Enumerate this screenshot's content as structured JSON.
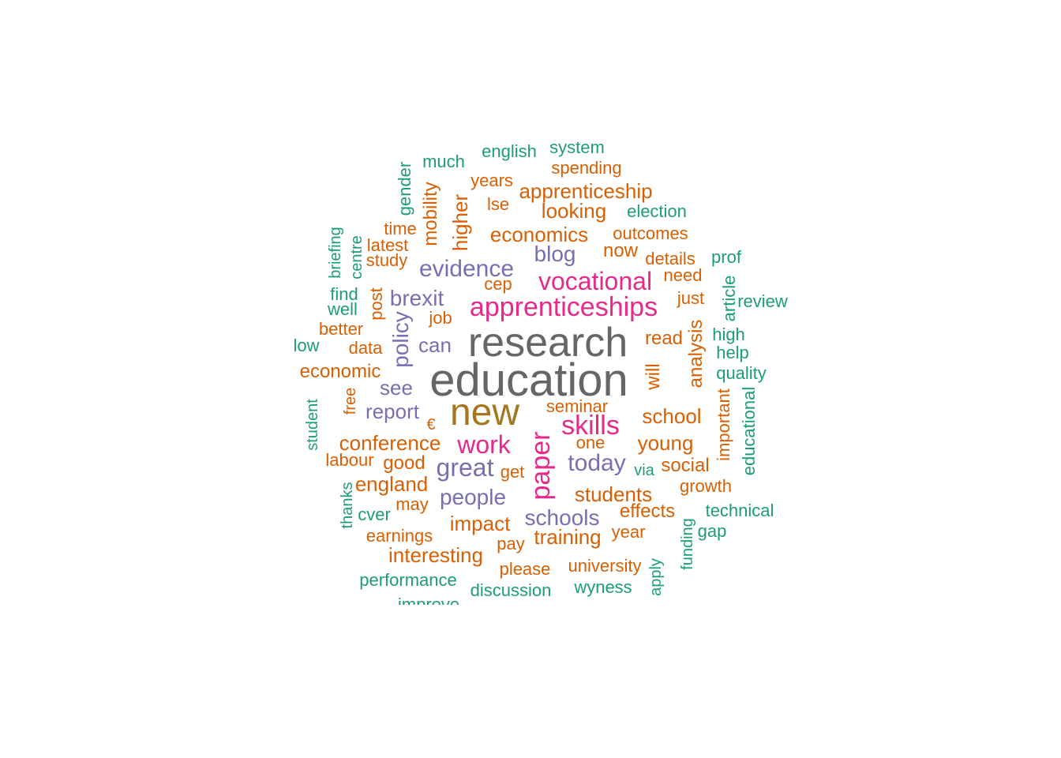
{
  "colors": {
    "gray": "#666666",
    "gold": "#a6761d",
    "pink": "#e7298a",
    "purple": "#7570b3",
    "orange": "#d95f02",
    "green": "#1b9e77"
  },
  "words": [
    {
      "text": "education",
      "color": "gold-grey"
    },
    {
      "text": "research"
    },
    {
      "text": "new"
    },
    {
      "text": "apprenticeships"
    },
    {
      "text": "vocational"
    },
    {
      "text": "skills"
    },
    {
      "text": "paper"
    },
    {
      "text": "work"
    },
    {
      "text": "evidence"
    },
    {
      "text": "great"
    },
    {
      "text": "today"
    },
    {
      "text": "blog"
    },
    {
      "text": "policy"
    },
    {
      "text": "brexit"
    },
    {
      "text": "people"
    },
    {
      "text": "schools"
    },
    {
      "text": "see"
    },
    {
      "text": "can"
    },
    {
      "text": "report"
    },
    {
      "text": "economics"
    },
    {
      "text": "apprenticeship"
    },
    {
      "text": "looking"
    },
    {
      "text": "conference"
    },
    {
      "text": "impact"
    },
    {
      "text": "training"
    },
    {
      "text": "students"
    },
    {
      "text": "school"
    },
    {
      "text": "young"
    },
    {
      "text": "social"
    },
    {
      "text": "effects"
    },
    {
      "text": "interesting"
    },
    {
      "text": "england"
    },
    {
      "text": "economic"
    },
    {
      "text": "analysis"
    },
    {
      "text": "higher"
    },
    {
      "text": "mobility"
    },
    {
      "text": "good"
    },
    {
      "text": "university"
    },
    {
      "text": "please"
    },
    {
      "text": "earnings"
    },
    {
      "text": "year"
    },
    {
      "text": "now"
    },
    {
      "text": "read"
    },
    {
      "text": "just"
    },
    {
      "text": "need"
    },
    {
      "text": "details"
    },
    {
      "text": "outcomes"
    },
    {
      "text": "spending"
    },
    {
      "text": "years"
    },
    {
      "text": "lse"
    },
    {
      "text": "time"
    },
    {
      "text": "latest"
    },
    {
      "text": "study"
    },
    {
      "text": "post"
    },
    {
      "text": "job"
    },
    {
      "text": "cep"
    },
    {
      "text": "better"
    },
    {
      "text": "data"
    },
    {
      "text": "free"
    },
    {
      "text": "€"
    },
    {
      "text": "labour"
    },
    {
      "text": "may"
    },
    {
      "text": "get"
    },
    {
      "text": "pay"
    },
    {
      "text": "seminar"
    },
    {
      "text": "one"
    },
    {
      "text": "will"
    },
    {
      "text": "important"
    },
    {
      "text": "growth"
    },
    {
      "text": "english"
    },
    {
      "text": "system"
    },
    {
      "text": "much"
    },
    {
      "text": "gender"
    },
    {
      "text": "election"
    },
    {
      "text": "prof"
    },
    {
      "text": "article"
    },
    {
      "text": "review"
    },
    {
      "text": "high"
    },
    {
      "text": "help"
    },
    {
      "text": "quality"
    },
    {
      "text": "educational"
    },
    {
      "text": "briefing"
    },
    {
      "text": "centre"
    },
    {
      "text": "find"
    },
    {
      "text": "well"
    },
    {
      "text": "low"
    },
    {
      "text": "student"
    },
    {
      "text": "thanks"
    },
    {
      "text": "cver"
    },
    {
      "text": "technical"
    },
    {
      "text": "gap"
    },
    {
      "text": "funding"
    },
    {
      "text": "apply"
    },
    {
      "text": "via"
    },
    {
      "text": "wyness"
    },
    {
      "text": "discussion"
    },
    {
      "text": "performance"
    },
    {
      "text": "improve"
    }
  ]
}
